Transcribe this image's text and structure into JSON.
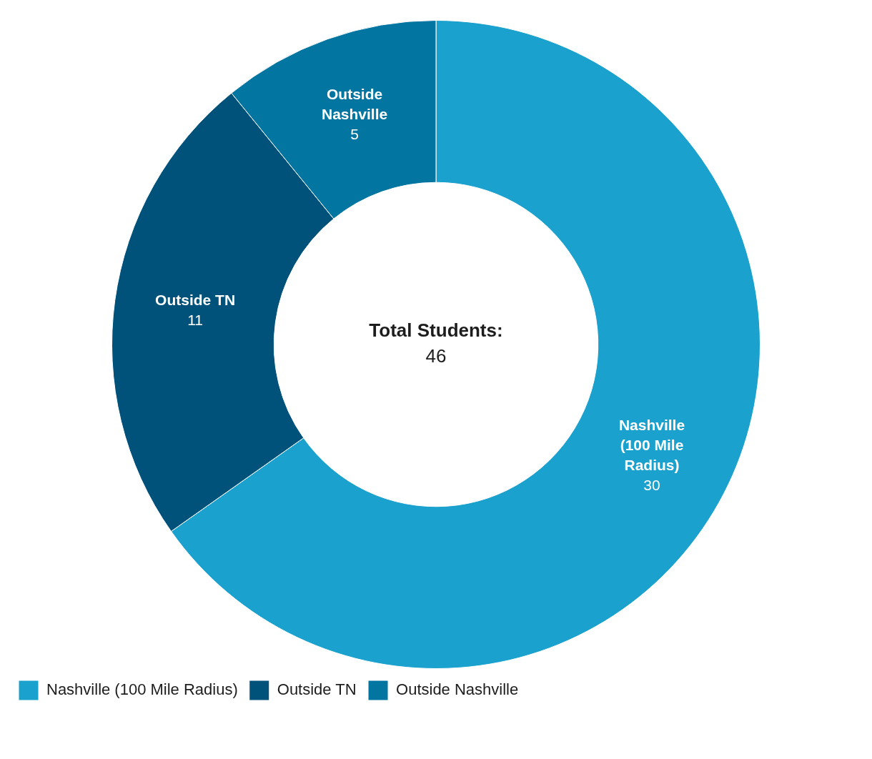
{
  "chart_data": {
    "type": "donut",
    "categories": [
      "Nashville (100 Mile Radius)",
      "Outside TN",
      "Outside Nashville"
    ],
    "values": [
      30,
      11,
      5
    ],
    "colors": [
      "#1aa1cd",
      "#01527a",
      "#0275a0"
    ],
    "data_labels": true,
    "legend": "bottom left",
    "annotations": [
      "Total Students:",
      "46"
    ]
  }
}
